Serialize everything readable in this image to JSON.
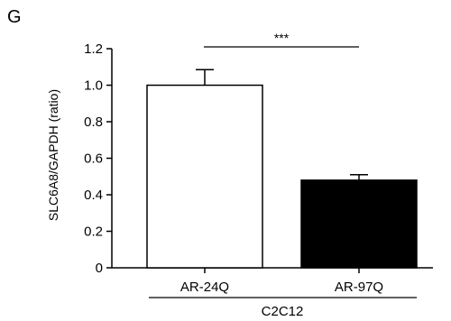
{
  "panel_label": "G",
  "chart_data": {
    "type": "bar",
    "categories": [
      "AR-24Q",
      "AR-97Q"
    ],
    "values": [
      1.0,
      0.48
    ],
    "error": [
      0.085,
      0.03
    ],
    "ylabel": "SLC6A8/GAPDH (ratio)",
    "xlabel": "",
    "ylim": [
      0,
      1.2
    ],
    "yticks": [
      0,
      0.2,
      0.4,
      0.6,
      0.8,
      1.0,
      1.2
    ],
    "ytick_labels": [
      "0",
      "0.2",
      "0.4",
      "0.6",
      "0.8",
      "1.0",
      "1.2"
    ],
    "group_label": "C2C12",
    "significance": "***",
    "bar_colors": [
      "#ffffff",
      "#000000"
    ],
    "grid": false,
    "legend": "none"
  }
}
